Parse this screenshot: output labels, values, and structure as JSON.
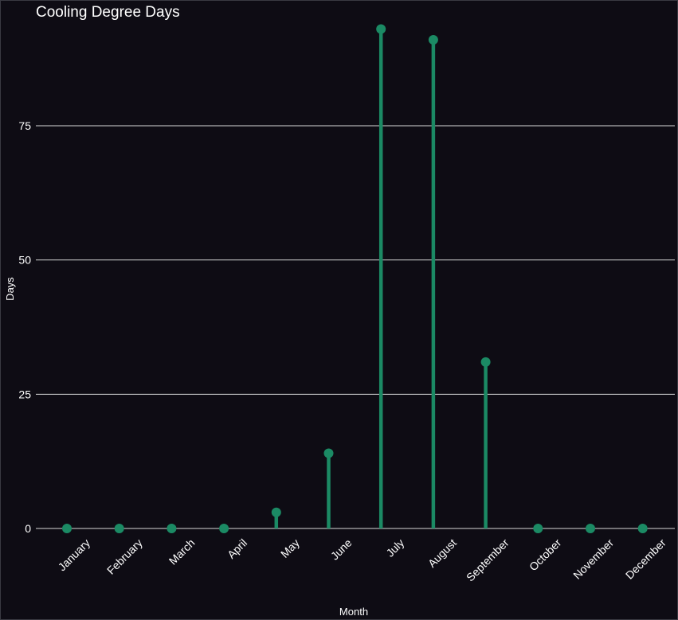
{
  "chart_data": {
    "type": "lollipop",
    "title": "Cooling Degree Days",
    "xlabel": "Month",
    "ylabel": "Days",
    "categories": [
      "January",
      "February",
      "March",
      "April",
      "May",
      "June",
      "July",
      "August",
      "September",
      "October",
      "November",
      "December"
    ],
    "values": [
      0,
      0,
      0,
      0,
      3,
      14,
      93,
      91,
      31,
      0,
      0,
      0
    ],
    "ylim": [
      0,
      95
    ],
    "yticks": [
      0,
      25,
      50,
      75
    ],
    "grid": true,
    "colors": {
      "background": "#0e0c14",
      "stem": "#1b8a64",
      "dot": "#1b8a64",
      "grid": "#d8d8d8",
      "text": "#ffffff"
    }
  }
}
